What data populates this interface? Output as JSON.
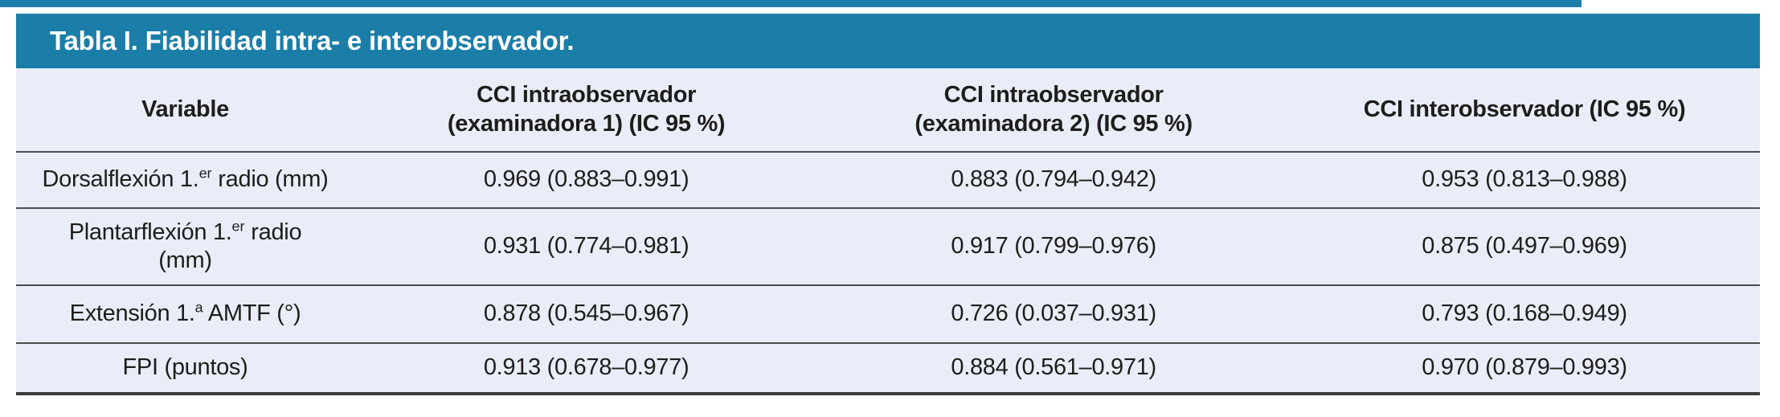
{
  "page": {
    "accent_color": "#1b7ea8",
    "row_bg": "#e9edf7",
    "rule_color": "#4c4c4c"
  },
  "table": {
    "title": "Tabla I. Fiabilidad intra- e interobservador.",
    "columns": [
      {
        "lines": [
          "Variable"
        ]
      },
      {
        "lines": [
          "CCI intraobservador",
          "(examinadora 1) (IC 95 %)"
        ]
      },
      {
        "lines": [
          "CCI intraobservador",
          "(examinadora 2) (IC 95 %)"
        ]
      },
      {
        "lines": [
          "CCI interobservador (IC 95 %)"
        ]
      }
    ],
    "rows": [
      {
        "variable": {
          "pre": "Dorsalflexión 1.",
          "sup": "er",
          "post": " radio (mm)"
        },
        "values": [
          "0.969 (0.883–0.991)",
          "0.883 (0.794–0.942)",
          "0.953 (0.813–0.988)"
        ]
      },
      {
        "variable": {
          "pre": "Plantarflexión 1.",
          "sup": "er",
          "post": " radio",
          "line2": "(mm)"
        },
        "values": [
          "0.931 (0.774–0.981)",
          "0.917 (0.799–0.976)",
          "0.875 (0.497–0.969)"
        ]
      },
      {
        "variable": {
          "pre": "Extensión 1.",
          "sup": "a",
          "post": " AMTF (°)"
        },
        "values": [
          "0.878 (0.545–0.967)",
          "0.726 (0.037–0.931)",
          "0.793 (0.168–0.949)"
        ]
      },
      {
        "variable": {
          "pre": "FPI (puntos)"
        },
        "values": [
          "0.913 (0.678–0.977)",
          "0.884 (0.561–0.971)",
          "0.970 (0.879–0.993)"
        ]
      }
    ]
  }
}
